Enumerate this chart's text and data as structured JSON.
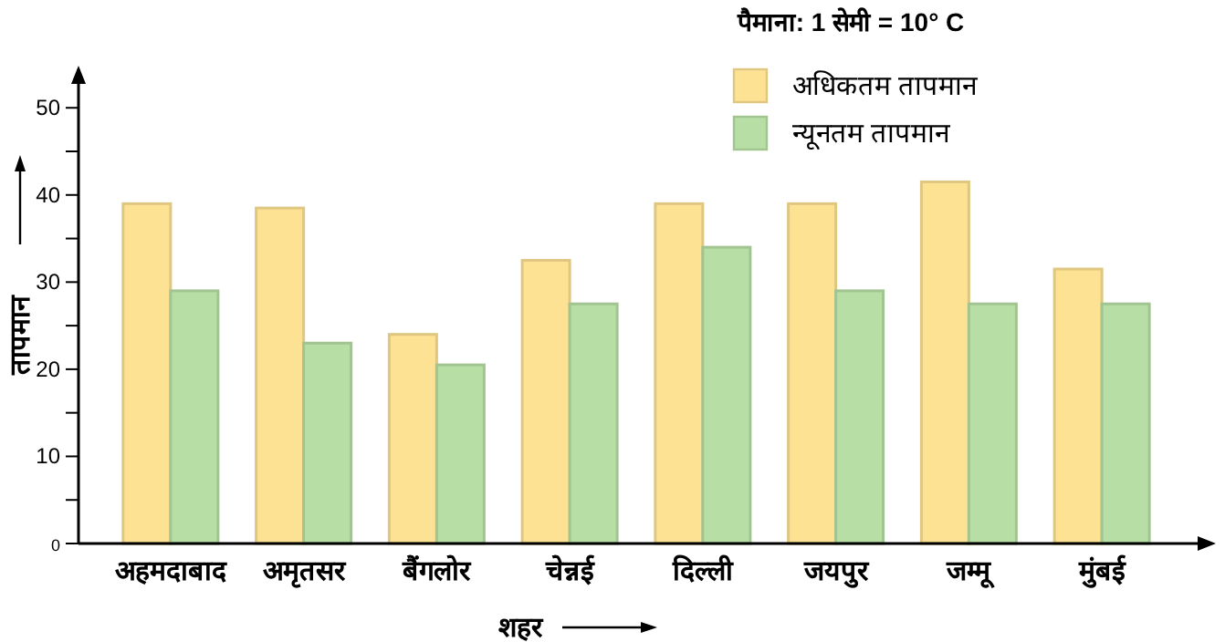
{
  "chart_data": {
    "type": "bar",
    "annotations": [
      "पैमाना: 1 सेमी = 10° C"
    ],
    "xlabel": "शहर",
    "ylabel": "तापमान",
    "categories": [
      "अहमदाबाद",
      "अमृतसर",
      "बैंगलोर",
      "चेन्नई",
      "दिल्ली",
      "जयपुर",
      "जम्मू",
      "मुंबई"
    ],
    "series": [
      {
        "name": "अधिकतम तापमान",
        "color": "#fde293",
        "values": [
          39,
          38.5,
          24,
          32.5,
          39,
          39,
          41.5,
          31.5
        ]
      },
      {
        "name": "न्यूनतम तापमान",
        "color": "#b7dfa5",
        "values": [
          29,
          23,
          20.5,
          27.5,
          34,
          29,
          27.5,
          27.5
        ]
      }
    ],
    "ylim": [
      0,
      54
    ],
    "yticks": [
      0,
      {
        "value": 5,
        "label": null
      },
      10,
      {
        "value": 15,
        "label": null
      },
      20,
      {
        "value": 25,
        "label": null
      },
      30,
      {
        "value": 35,
        "label": null
      },
      40,
      {
        "value": 45,
        "label": null
      },
      50
    ],
    "grid": false,
    "legend": "top"
  }
}
